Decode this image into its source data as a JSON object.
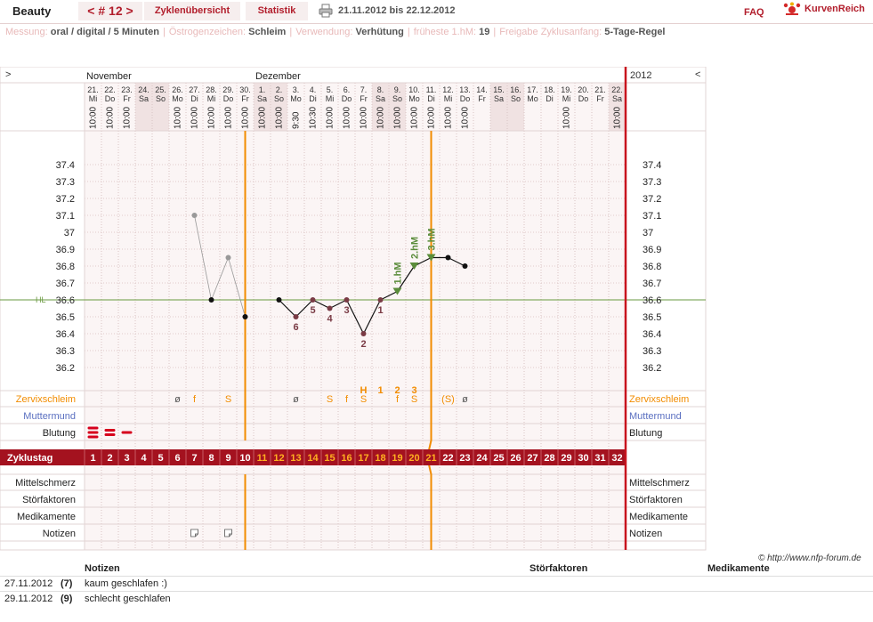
{
  "header": {
    "cycle_name": "Beauty",
    "cycle_number": "< # 12 >",
    "tab_overview": "Zyklenübersicht",
    "tab_stats": "Statistik",
    "date_range": "21.11.2012 bis 22.12.2012",
    "faq": "FAQ",
    "brand": "KurvenReich"
  },
  "info": [
    {
      "k": "Messung:",
      "v": "oral / digital / 5 Minuten"
    },
    {
      "k": "Östrogenzeichen:",
      "v": "Schleim"
    },
    {
      "k": "Verwendung:",
      "v": "Verhütung"
    },
    {
      "k": "früheste 1.hM:",
      "v": "19"
    },
    {
      "k": "Freigabe Zyklusanfang:",
      "v": "5-Tage-Regel"
    }
  ],
  "chart_data": {
    "type": "line",
    "nav_left": ">",
    "nav_right": "<",
    "year": "2012",
    "months": [
      {
        "label": "November",
        "col": 0
      },
      {
        "label": "Dezember",
        "col": 10
      }
    ],
    "days": [
      "21.",
      "22.",
      "23.",
      "24.",
      "25.",
      "26.",
      "27.",
      "28.",
      "29.",
      "30.",
      "1.",
      "2.",
      "3.",
      "4.",
      "5.",
      "6.",
      "7.",
      "8.",
      "9.",
      "10.",
      "11.",
      "12.",
      "13.",
      "14.",
      "15.",
      "16.",
      "17.",
      "18.",
      "19.",
      "20.",
      "21.",
      "22."
    ],
    "weekdays": [
      "Mi",
      "Do",
      "Fr",
      "Sa",
      "So",
      "Mo",
      "Di",
      "Mi",
      "Do",
      "Fr",
      "Sa",
      "So",
      "Mo",
      "Di",
      "Mi",
      "Do",
      "Fr",
      "Sa",
      "So",
      "Mo",
      "Di",
      "Mi",
      "Do",
      "Fr",
      "Sa",
      "So",
      "Mo",
      "Di",
      "Mi",
      "Do",
      "Fr",
      "Sa"
    ],
    "times": [
      "10:00",
      "10:00",
      "10:00",
      "",
      "",
      "10:00",
      "10:00",
      "10:00",
      "10:00",
      "10:00",
      "10:00",
      "10:00",
      "9:30",
      "10:30",
      "10:00",
      "10:00",
      "10:00",
      "10:00",
      "10:00",
      "10:00",
      "10:00",
      "10:00",
      "10:00",
      "",
      "",
      "",
      "",
      "",
      "10:00",
      "",
      "",
      "10:00"
    ],
    "weekend_cols": [
      3,
      4,
      10,
      11,
      17,
      18,
      24,
      25,
      31
    ],
    "y_ticks": [
      "37.4",
      "37.3",
      "37.2",
      "37.1",
      "37",
      "36.9",
      "36.8",
      "36.7",
      "36.6",
      "36.5",
      "36.4",
      "36.3",
      "36.2"
    ],
    "ylim": [
      36.2,
      37.4
    ],
    "hl_label": "HL",
    "hl_value": 36.6,
    "temperatures": [
      null,
      null,
      null,
      null,
      null,
      null,
      37.1,
      36.6,
      36.85,
      36.5,
      null,
      36.6,
      36.5,
      36.6,
      36.55,
      36.6,
      36.4,
      36.6,
      36.65,
      36.8,
      36.85,
      36.85,
      36.8,
      null,
      null,
      null,
      null,
      null,
      null,
      null,
      null,
      null
    ],
    "excluded": [
      6,
      8
    ],
    "low_count": [
      {
        "day": 12,
        "n": "6"
      },
      {
        "day": 13,
        "n": "5"
      },
      {
        "day": 14,
        "n": "4"
      },
      {
        "day": 15,
        "n": "3"
      },
      {
        "day": 16,
        "n": "2"
      },
      {
        "day": 17,
        "n": "1"
      }
    ],
    "high_marks": [
      {
        "day": 18,
        "label": "1.hM"
      },
      {
        "day": 19,
        "label": "2.hM"
      },
      {
        "day": 20,
        "label": "3.hM"
      }
    ],
    "cervix_top": [
      {
        "day": 16,
        "t": "H"
      },
      {
        "day": 17,
        "t": "1"
      },
      {
        "day": 18,
        "t": "2"
      },
      {
        "day": 19,
        "t": "3"
      }
    ],
    "cervix": [
      {
        "day": 5,
        "t": "ø"
      },
      {
        "day": 6,
        "t": "f"
      },
      {
        "day": 8,
        "t": "S"
      },
      {
        "day": 12,
        "t": "ø"
      },
      {
        "day": 14,
        "t": "S"
      },
      {
        "day": 15,
        "t": "f"
      },
      {
        "day": 16,
        "t": "S"
      },
      {
        "day": 18,
        "t": "f"
      },
      {
        "day": 19,
        "t": "S"
      },
      {
        "day": 21,
        "t": "(S)"
      },
      {
        "day": 22,
        "t": "ø"
      }
    ],
    "row_labels_left": [
      "Zervixschleim",
      "Muttermund",
      "Blutung"
    ],
    "row_labels_bottom": [
      "Mittelschmerz",
      "Störfaktoren",
      "Medikamente",
      "Notizen"
    ],
    "cycle_day_label": "Zyklustag",
    "cycle_days": [
      "1",
      "2",
      "3",
      "4",
      "5",
      "6",
      "7",
      "8",
      "9",
      "10",
      "11",
      "12",
      "13",
      "14",
      "15",
      "16",
      "17",
      "18",
      "19",
      "20",
      "21",
      "22",
      "23",
      "24",
      "25",
      "26",
      "27",
      "28",
      "29",
      "30",
      "31",
      "32"
    ],
    "bleeding": [
      {
        "day": 0,
        "level": 3
      },
      {
        "day": 1,
        "level": 2
      },
      {
        "day": 2,
        "level": 1
      }
    ],
    "notes_icon_days": [
      6,
      8
    ],
    "mucus_line_day": 9.5,
    "temp_line_day": 20.5,
    "colors": {
      "accent": "#a4121f",
      "orange": "#f28c00",
      "green": "#5a8c3a",
      "point": "#7a3b45"
    }
  },
  "copyright": "© http://www.nfp-forum.de",
  "notes_table": {
    "headers": {
      "notes": "Notizen",
      "disturb": "Störfaktoren",
      "meds": "Medikamente"
    },
    "rows": [
      {
        "date": "27.11.2012",
        "day": "(7)",
        "note": "kaum geschlafen :)"
      },
      {
        "date": "29.11.2012",
        "day": "(9)",
        "note": "schlecht geschlafen"
      }
    ]
  }
}
